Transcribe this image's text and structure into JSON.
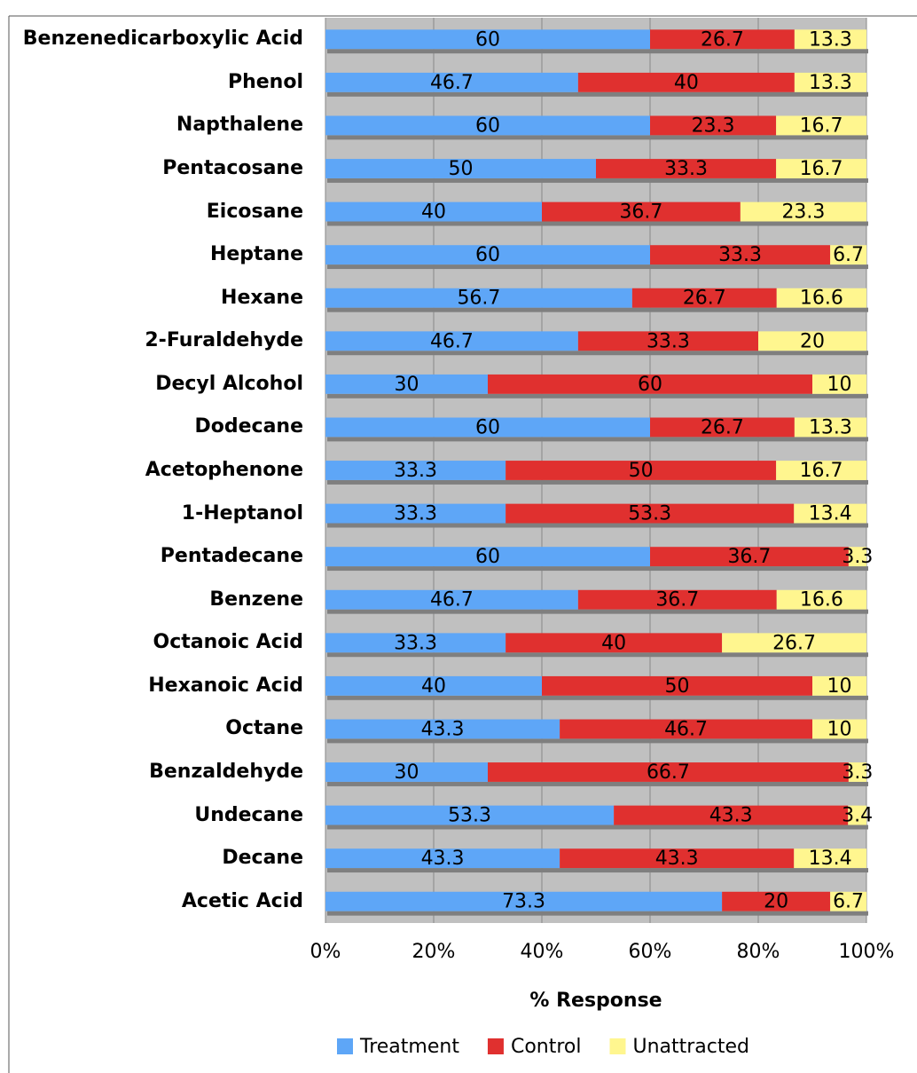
{
  "chart_data": {
    "type": "stacked_bar_horizontal",
    "x_label": "% Response",
    "categories": [
      "Benzenedicarboxylic Acid",
      "Phenol",
      "Napthalene",
      "Pentacosane",
      "Eicosane",
      "Heptane",
      "Hexane",
      "2-Furaldehyde",
      "Decyl Alcohol",
      "Dodecane",
      "Acetophenone",
      "1-Heptanol",
      "Pentadecane",
      "Benzene",
      "Octanoic Acid",
      "Hexanoic Acid",
      "Octane",
      "Benzaldehyde",
      "Undecane",
      "Decane",
      "Acetic Acid"
    ],
    "series": [
      {
        "name": "Treatment",
        "color": "#5ea6f7",
        "values": [
          60,
          46.7,
          60,
          50,
          40,
          60,
          56.7,
          46.7,
          30,
          60,
          33.3,
          33.3,
          60,
          46.7,
          33.3,
          40,
          43.3,
          30,
          53.3,
          43.3,
          73.3
        ]
      },
      {
        "name": "Control",
        "color": "#e0302f",
        "values": [
          26.7,
          40,
          23.3,
          33.3,
          36.7,
          33.3,
          26.7,
          33.3,
          60,
          26.7,
          50,
          53.3,
          36.7,
          36.7,
          40,
          50,
          46.7,
          66.7,
          43.3,
          43.3,
          20
        ]
      },
      {
        "name": "Unattracted",
        "color": "#fff68f",
        "values": [
          13.3,
          13.3,
          16.7,
          16.7,
          23.3,
          6.7,
          16.6,
          20,
          10,
          13.3,
          16.7,
          13.4,
          3.3,
          16.6,
          26.7,
          10,
          10,
          3.3,
          3.4,
          13.4,
          6.7
        ]
      }
    ],
    "xlim": [
      0,
      100
    ],
    "xticks": [
      {
        "value": 0,
        "label": "0%"
      },
      {
        "value": 20,
        "label": "20%"
      },
      {
        "value": 40,
        "label": "40%"
      },
      {
        "value": 60,
        "label": "60%"
      },
      {
        "value": 80,
        "label": "80%"
      },
      {
        "value": 100,
        "label": "100%"
      }
    ],
    "grid": true,
    "legend": "bottom"
  }
}
